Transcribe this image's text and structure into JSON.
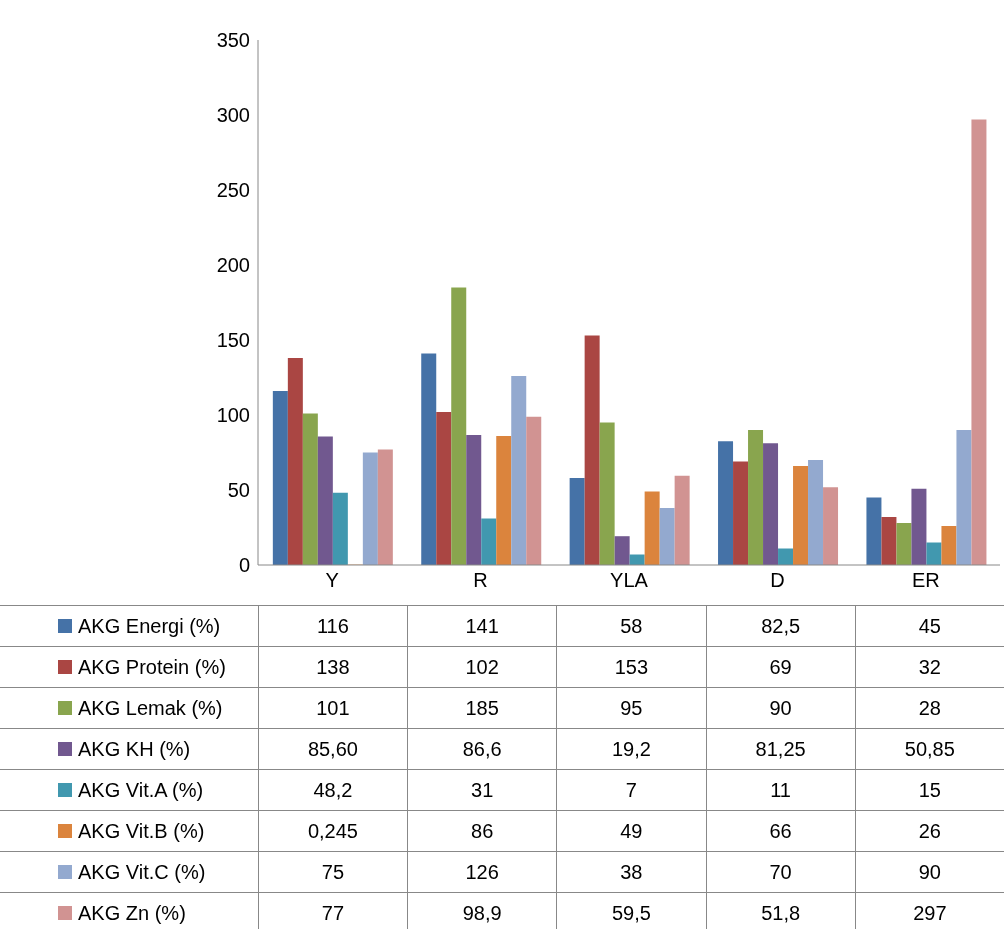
{
  "chart_data": {
    "type": "bar",
    "categories": [
      "Y",
      "R",
      "YLA",
      "D",
      "ER"
    ],
    "ylim": [
      0,
      350
    ],
    "yticks": [
      0,
      50,
      100,
      150,
      200,
      250,
      300,
      350
    ],
    "grid": false,
    "legend": "bottom",
    "series": [
      {
        "name": "AKG Energi (%)",
        "color": "#4572a7",
        "values": [
          116,
          141,
          58,
          82.5,
          45
        ],
        "value_labels": [
          "116",
          "141",
          "58",
          "82,5",
          "45"
        ]
      },
      {
        "name": "AKG Protein (%)",
        "color": "#aa4643",
        "values": [
          138,
          102,
          153,
          69,
          32
        ],
        "value_labels": [
          "138",
          "102",
          "153",
          "69",
          "32"
        ]
      },
      {
        "name": "AKG Lemak (%)",
        "color": "#89a54e",
        "values": [
          101,
          185,
          95,
          90,
          28
        ],
        "value_labels": [
          "101",
          "185",
          "95",
          "90",
          "28"
        ]
      },
      {
        "name": "AKG KH (%)",
        "color": "#71588f",
        "values": [
          85.6,
          86.6,
          19.2,
          81.25,
          50.85
        ],
        "value_labels": [
          "85,60",
          "86,6",
          "19,2",
          "81,25",
          "50,85"
        ]
      },
      {
        "name": "AKG Vit.A (%)",
        "color": "#4198af",
        "values": [
          48.2,
          31,
          7,
          11,
          15
        ],
        "value_labels": [
          "48,2",
          "31",
          "7",
          "11",
          "15"
        ]
      },
      {
        "name": "AKG Vit.B (%)",
        "color": "#db843d",
        "values": [
          0.245,
          86,
          49,
          66,
          26
        ],
        "value_labels": [
          "0,245",
          "86",
          "49",
          "66",
          "26"
        ]
      },
      {
        "name": "AKG Vit.C (%)",
        "color": "#93a9cf",
        "values": [
          75,
          126,
          38,
          70,
          90
        ],
        "value_labels": [
          "75",
          "126",
          "38",
          "70",
          "90"
        ]
      },
      {
        "name": "AKG Zn (%)",
        "color": "#d19392",
        "values": [
          77,
          98.9,
          59.5,
          51.8,
          297
        ],
        "value_labels": [
          "77",
          "98,9",
          "59,5",
          "51,8",
          "297"
        ]
      }
    ]
  }
}
